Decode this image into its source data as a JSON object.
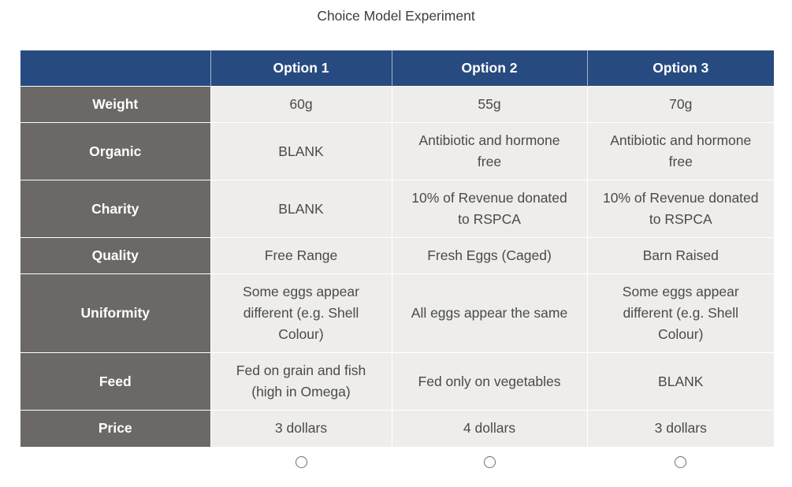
{
  "title": "Choice Model Experiment",
  "columns": [
    "",
    "Option 1",
    "Option 2",
    "Option 3"
  ],
  "rows": [
    {
      "label": "Weight",
      "values": [
        "60g",
        "55g",
        "70g"
      ]
    },
    {
      "label": "Organic",
      "values": [
        "BLANK",
        "Antibiotic and hormone free",
        "Antibiotic and hormone free"
      ]
    },
    {
      "label": "Charity",
      "values": [
        "BLANK",
        "10% of Revenue donated to RSPCA",
        "10% of Revenue donated to RSPCA"
      ]
    },
    {
      "label": "Quality",
      "values": [
        "Free Range",
        "Fresh Eggs (Caged)",
        "Barn Raised"
      ]
    },
    {
      "label": "Uniformity",
      "values": [
        "Some eggs appear different (e.g. Shell Colour)",
        "All eggs appear the same",
        "Some eggs appear different (e.g. Shell Colour)"
      ]
    },
    {
      "label": "Feed",
      "values": [
        "Fed on grain and fish (high in Omega)",
        "Fed only on vegetables",
        "BLANK"
      ]
    },
    {
      "label": "Price",
      "values": [
        "3 dollars",
        "4 dollars",
        "3 dollars"
      ]
    }
  ],
  "choices": [
    {
      "option": "Option 1",
      "selected": false
    },
    {
      "option": "Option 2",
      "selected": false
    },
    {
      "option": "Option 3",
      "selected": false
    }
  ],
  "colors": {
    "header_bg": "#274b80",
    "row_label_bg": "#6b6865",
    "cell_bg": "#eeedec"
  }
}
